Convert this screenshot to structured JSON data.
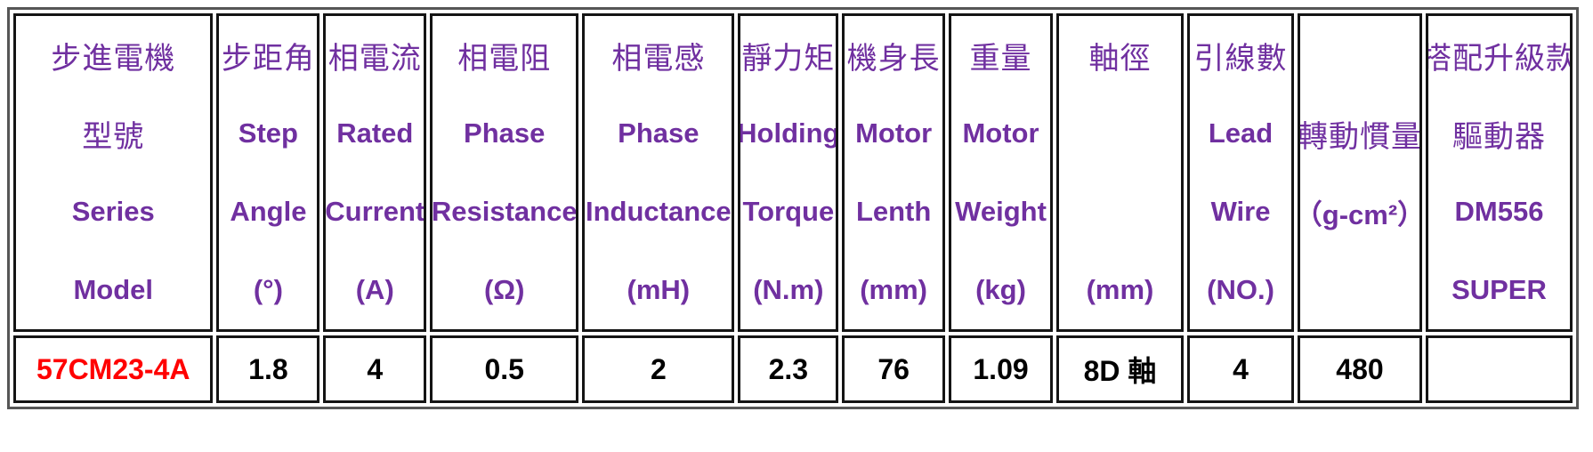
{
  "colors": {
    "header_text": "#7030A0",
    "value_text": "#000000",
    "model_text": "#FF0000",
    "outer_border": "#565656",
    "cell_border": "#141414"
  },
  "table": {
    "columns": [
      {
        "name": "model",
        "header": [
          {
            "text": "步進電機",
            "style": "cjk"
          },
          {
            "text": "型號",
            "style": "cjk"
          },
          {
            "text": "Series",
            "style": "en"
          },
          {
            "text": "Model",
            "style": "en"
          }
        ],
        "value": "57CM23-4A",
        "value_style": "model"
      },
      {
        "name": "step-angle",
        "header": [
          {
            "text": "步距角",
            "style": "cjk"
          },
          {
            "text": "Step",
            "style": "en"
          },
          {
            "text": "Angle",
            "style": "en"
          },
          {
            "text": "(°)",
            "style": "en"
          }
        ],
        "value": "1.8",
        "value_style": "num"
      },
      {
        "name": "rated-current",
        "header": [
          {
            "text": "相電流",
            "style": "cjk"
          },
          {
            "text": "Rated",
            "style": "en"
          },
          {
            "text": "Current",
            "style": "en"
          },
          {
            "text": "(A)",
            "style": "en"
          }
        ],
        "value": "4",
        "value_style": "num"
      },
      {
        "name": "phase-resistance",
        "header": [
          {
            "text": "相電阻",
            "style": "cjk"
          },
          {
            "text": "Phase",
            "style": "en"
          },
          {
            "text": "Resistance",
            "style": "en"
          },
          {
            "text": "(Ω)",
            "style": "en"
          }
        ],
        "value": "0.5",
        "value_style": "num"
      },
      {
        "name": "phase-inductance",
        "header": [
          {
            "text": "相電感",
            "style": "cjk"
          },
          {
            "text": "Phase",
            "style": "en"
          },
          {
            "text": "Inductance",
            "style": "en"
          },
          {
            "text": "(mH)",
            "style": "en"
          }
        ],
        "value": "2",
        "value_style": "num"
      },
      {
        "name": "holding-torque",
        "header": [
          {
            "text": "靜力矩",
            "style": "cjk"
          },
          {
            "text": "Holding",
            "style": "en"
          },
          {
            "text": "Torque",
            "style": "en"
          },
          {
            "text": "(N.m)",
            "style": "en"
          }
        ],
        "value": "2.3",
        "value_style": "num"
      },
      {
        "name": "motor-length",
        "header": [
          {
            "text": "機身長",
            "style": "cjk"
          },
          {
            "text": "Motor",
            "style": "en"
          },
          {
            "text": "Lenth",
            "style": "en"
          },
          {
            "text": "(mm)",
            "style": "en"
          }
        ],
        "value": "76",
        "value_style": "num"
      },
      {
        "name": "motor-weight",
        "header": [
          {
            "text": "重量",
            "style": "cjk"
          },
          {
            "text": "Motor",
            "style": "en"
          },
          {
            "text": "Weight",
            "style": "en"
          },
          {
            "text": "(kg)",
            "style": "en"
          }
        ],
        "value": "1.09",
        "value_style": "num"
      },
      {
        "name": "shaft-diameter",
        "header": [
          {
            "text": "軸徑",
            "style": "cjk"
          },
          {
            "text": "",
            "style": "en"
          },
          {
            "text": "",
            "style": "en"
          },
          {
            "text": "(mm)",
            "style": "en"
          }
        ],
        "value": "8D 軸",
        "value_style": "num"
      },
      {
        "name": "lead-wire",
        "header": [
          {
            "text": "引線數",
            "style": "cjk"
          },
          {
            "text": "Lead",
            "style": "en"
          },
          {
            "text": "Wire",
            "style": "en"
          },
          {
            "text": "(NO.)",
            "style": "en"
          }
        ],
        "value": "4",
        "value_style": "num"
      },
      {
        "name": "rotor-inertia",
        "header": [
          {
            "text": "",
            "style": "cjk"
          },
          {
            "text": "轉動慣量",
            "style": "cjk"
          },
          {
            "text": "（g-cm²）",
            "style": "en"
          },
          {
            "text": "",
            "style": "en"
          }
        ],
        "value": "480",
        "value_style": "num"
      },
      {
        "name": "driver",
        "header": [
          {
            "text": "搭配升級款",
            "style": "cjk"
          },
          {
            "text": "驅動器",
            "style": "cjk"
          },
          {
            "text": "DM556",
            "style": "en"
          },
          {
            "text": "SUPER",
            "style": "en"
          }
        ],
        "value": "",
        "value_style": "num"
      }
    ]
  }
}
